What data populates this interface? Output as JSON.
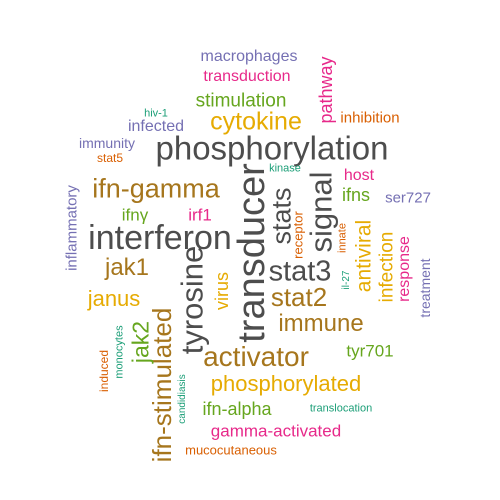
{
  "colors": {
    "gray": "#4d4d4d",
    "brown": "#a6761d",
    "magenta": "#e7298a",
    "orange": "#d95f02",
    "teal": "#1b9e77",
    "green": "#66a61e",
    "purple": "#7570b3",
    "gold": "#e6ab02"
  },
  "words": [
    {
      "text": "phosphorylation",
      "color": "gray",
      "rotated": false
    },
    {
      "text": "interferon",
      "color": "gray",
      "rotated": false
    },
    {
      "text": "transducer",
      "color": "gray",
      "rotated": true
    },
    {
      "text": "stat3",
      "color": "gray",
      "rotated": false
    },
    {
      "text": "tyrosine",
      "color": "gray",
      "rotated": true
    },
    {
      "text": "signal",
      "color": "gray",
      "rotated": true
    },
    {
      "text": "stats",
      "color": "gray",
      "rotated": true
    },
    {
      "text": "ifn-gamma",
      "color": "brown",
      "rotated": false
    },
    {
      "text": "activator",
      "color": "brown",
      "rotated": false
    },
    {
      "text": "ifn-stimulated",
      "color": "brown",
      "rotated": true
    },
    {
      "text": "stat2",
      "color": "brown",
      "rotated": false
    },
    {
      "text": "immune",
      "color": "brown",
      "rotated": false
    },
    {
      "text": "jak1",
      "color": "brown",
      "rotated": false
    },
    {
      "text": "cytokine",
      "color": "gold",
      "rotated": false
    },
    {
      "text": "phosphorylated",
      "color": "gold",
      "rotated": false
    },
    {
      "text": "janus",
      "color": "gold",
      "rotated": false
    },
    {
      "text": "virus",
      "color": "gold",
      "rotated": true
    },
    {
      "text": "antiviral",
      "color": "gold",
      "rotated": true
    },
    {
      "text": "infection",
      "color": "gold",
      "rotated": true
    },
    {
      "text": "stimulation",
      "color": "green",
      "rotated": false
    },
    {
      "text": "jak2",
      "color": "green",
      "rotated": true
    },
    {
      "text": "tyr701",
      "color": "green",
      "rotated": false
    },
    {
      "text": "ifn-alpha",
      "color": "green",
      "rotated": false
    },
    {
      "text": "ifns",
      "color": "green",
      "rotated": false
    },
    {
      "text": "ifnγ",
      "color": "green",
      "rotated": false
    },
    {
      "text": "macrophages",
      "color": "purple",
      "rotated": false
    },
    {
      "text": "infected",
      "color": "purple",
      "rotated": false
    },
    {
      "text": "immunity",
      "color": "purple",
      "rotated": false
    },
    {
      "text": "ser727",
      "color": "purple",
      "rotated": false
    },
    {
      "text": "inflammatory",
      "color": "purple",
      "rotated": true
    },
    {
      "text": "treatment",
      "color": "purple",
      "rotated": true
    },
    {
      "text": "transduction",
      "color": "magenta",
      "rotated": false
    },
    {
      "text": "pathway",
      "color": "magenta",
      "rotated": true
    },
    {
      "text": "host",
      "color": "magenta",
      "rotated": false
    },
    {
      "text": "irf1",
      "color": "magenta",
      "rotated": false
    },
    {
      "text": "response",
      "color": "magenta",
      "rotated": true
    },
    {
      "text": "gamma-activated",
      "color": "magenta",
      "rotated": false
    },
    {
      "text": "inhibition",
      "color": "orange",
      "rotated": false
    },
    {
      "text": "stat5",
      "color": "orange",
      "rotated": false
    },
    {
      "text": "receptor",
      "color": "orange",
      "rotated": true
    },
    {
      "text": "innate",
      "color": "orange",
      "rotated": true
    },
    {
      "text": "induced",
      "color": "orange",
      "rotated": true
    },
    {
      "text": "mucocutaneous",
      "color": "orange",
      "rotated": false
    },
    {
      "text": "hiv-1",
      "color": "teal",
      "rotated": false
    },
    {
      "text": "kinase",
      "color": "teal",
      "rotated": false
    },
    {
      "text": "il-27",
      "color": "teal",
      "rotated": true
    },
    {
      "text": "monocytes",
      "color": "teal",
      "rotated": true
    },
    {
      "text": "candidiasis",
      "color": "teal",
      "rotated": true
    },
    {
      "text": "translocation",
      "color": "teal",
      "rotated": false
    }
  ]
}
